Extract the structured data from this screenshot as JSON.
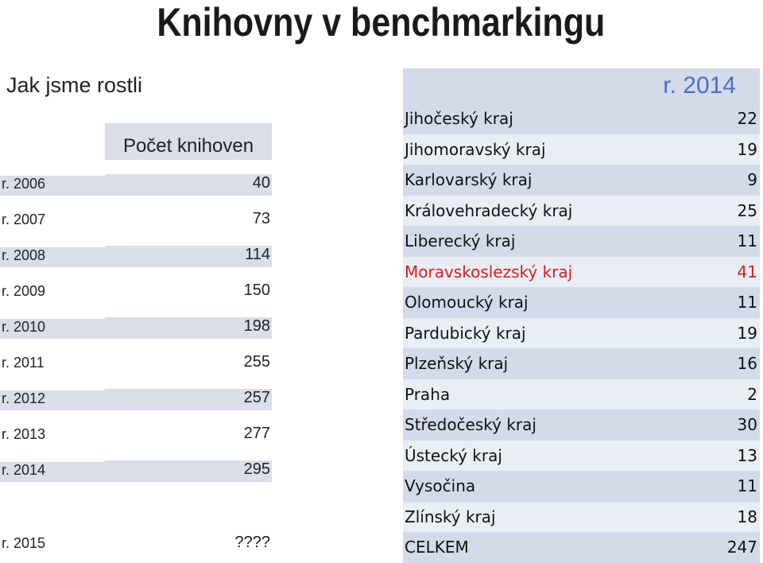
{
  "title": "Knihovny v benchmarkingu",
  "subtitle": "Jak jsme rostli",
  "left_table": {
    "header": "Počet knihoven",
    "rows": [
      {
        "year": "r. 2006",
        "value": "40"
      },
      {
        "year": "r. 2007",
        "value": "73"
      },
      {
        "year": "r. 2008",
        "value": "114"
      },
      {
        "year": "r. 2009",
        "value": "150"
      },
      {
        "year": "r. 2010",
        "value": "198"
      },
      {
        "year": "r. 2011",
        "value": "255"
      },
      {
        "year": "r. 2012",
        "value": "257"
      },
      {
        "year": "r. 2013",
        "value": "277"
      },
      {
        "year": "r. 2014",
        "value": "295"
      },
      {
        "year": "r. 2015",
        "value": "????"
      }
    ]
  },
  "right_table": {
    "header": "r. 2014",
    "highlight_color": "#d42020",
    "rows": [
      {
        "region": "Jihočeský kraj",
        "value": "22"
      },
      {
        "region": "Jihomoravský kraj",
        "value": "19"
      },
      {
        "region": "Karlovarský kraj",
        "value": "9"
      },
      {
        "region": "Královehradecký kraj",
        "value": "25"
      },
      {
        "region": "Liberecký kraj",
        "value": "11"
      },
      {
        "region": "Moravskoslezský kraj",
        "value": "41"
      },
      {
        "region": "Olomoucký kraj",
        "value": "11"
      },
      {
        "region": "Pardubický kraj",
        "value": "19"
      },
      {
        "region": "Plzeňský kraj",
        "value": "16"
      },
      {
        "region": "Praha",
        "value": "2"
      },
      {
        "region": "Středočeský kraj",
        "value": "30"
      },
      {
        "region": "Ústecký kraj",
        "value": "13"
      },
      {
        "region": "Vysočina",
        "value": "11"
      },
      {
        "region": "Zlínský kraj",
        "value": "18"
      },
      {
        "region": "CELKEM",
        "value": "247"
      }
    ]
  }
}
